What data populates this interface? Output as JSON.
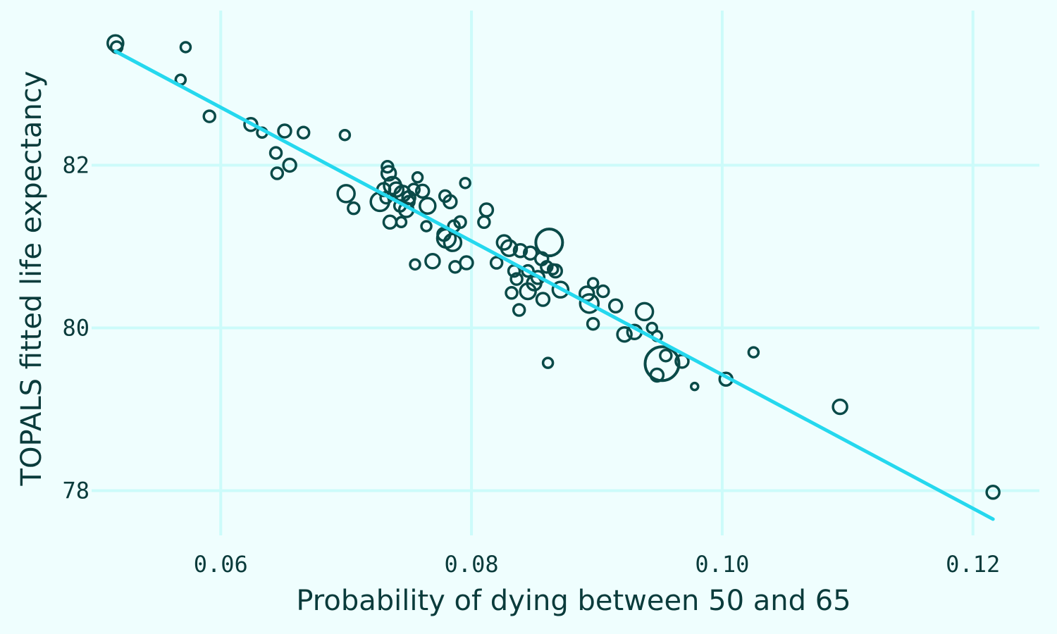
{
  "chart_data": {
    "type": "scatter",
    "title": "",
    "xlabel": "Probability of dying between 50 and 65",
    "ylabel": "TOPALS fitted life expectancy",
    "xlim": [
      0.0497,
      0.1253
    ],
    "ylim": [
      77.45,
      83.9
    ],
    "xticks": [
      0.06,
      0.08,
      0.1,
      0.12
    ],
    "xtick_labels": [
      "0.06",
      "0.08",
      "0.10",
      "0.12"
    ],
    "yticks": [
      78,
      80,
      82
    ],
    "ytick_labels": [
      "78",
      "80",
      "82"
    ],
    "grid": true,
    "legend": "none",
    "colors": {
      "background": "#effefe",
      "grid": "#ccfbfa",
      "points": "#0a4a48",
      "trend": "#25d8ee",
      "text": "#0a3b3b"
    },
    "trendline": {
      "x": [
        0.0516,
        0.1216
      ],
      "y": [
        83.4,
        77.65
      ]
    },
    "point_size_note": "marker size varies by point",
    "series": [
      {
        "x": [
          0.0516,
          0.0517,
          0.0572,
          0.0568,
          0.0591,
          0.0624,
          0.0633,
          0.0651,
          0.0644,
          0.0666,
          0.0645,
          0.0655,
          0.0699,
          0.07,
          0.0706,
          0.0733,
          0.0734,
          0.073,
          0.0737,
          0.0727,
          0.074,
          0.0745,
          0.075,
          0.0757,
          0.0754,
          0.0761,
          0.0735,
          0.0743,
          0.0748,
          0.0765,
          0.0732,
          0.0764,
          0.0755,
          0.0744,
          0.075,
          0.0779,
          0.0783,
          0.0786,
          0.0795,
          0.078,
          0.0791,
          0.0785,
          0.0769,
          0.0787,
          0.0796,
          0.0778,
          0.0812,
          0.081,
          0.0826,
          0.083,
          0.082,
          0.0839,
          0.0834,
          0.0847,
          0.0856,
          0.0862,
          0.086,
          0.0845,
          0.0853,
          0.0836,
          0.085,
          0.0845,
          0.0857,
          0.0832,
          0.0861,
          0.0865,
          0.0867,
          0.0871,
          0.0838,
          0.0894,
          0.0897,
          0.0905,
          0.0892,
          0.0915,
          0.0897,
          0.093,
          0.0938,
          0.0948,
          0.0948,
          0.0952,
          0.0955,
          0.0922,
          0.0944,
          0.0968,
          0.0978,
          0.1003,
          0.1025,
          0.1094,
          0.1216
        ],
        "y": [
          83.5,
          83.45,
          83.45,
          83.05,
          82.6,
          82.5,
          82.4,
          82.42,
          82.15,
          82.4,
          81.9,
          82.0,
          82.37,
          81.65,
          81.47,
          81.98,
          81.9,
          81.7,
          81.75,
          81.55,
          81.7,
          81.65,
          81.6,
          81.85,
          81.7,
          81.68,
          81.3,
          81.5,
          81.45,
          81.5,
          81.6,
          81.25,
          80.78,
          81.3,
          81.55,
          81.62,
          81.55,
          81.25,
          81.78,
          81.1,
          81.3,
          81.05,
          80.82,
          80.75,
          80.8,
          81.15,
          81.45,
          81.3,
          81.05,
          80.98,
          80.8,
          80.95,
          80.7,
          80.92,
          80.85,
          81.05,
          80.75,
          80.7,
          80.62,
          80.6,
          80.55,
          80.45,
          80.35,
          80.43,
          79.57,
          80.72,
          80.7,
          80.47,
          80.22,
          80.3,
          80.55,
          80.45,
          80.42,
          80.27,
          80.05,
          79.95,
          80.2,
          79.9,
          79.42,
          79.56,
          79.66,
          79.92,
          80.0,
          79.59,
          79.28,
          79.37,
          79.7,
          79.03,
          77.98
        ]
      }
    ]
  }
}
